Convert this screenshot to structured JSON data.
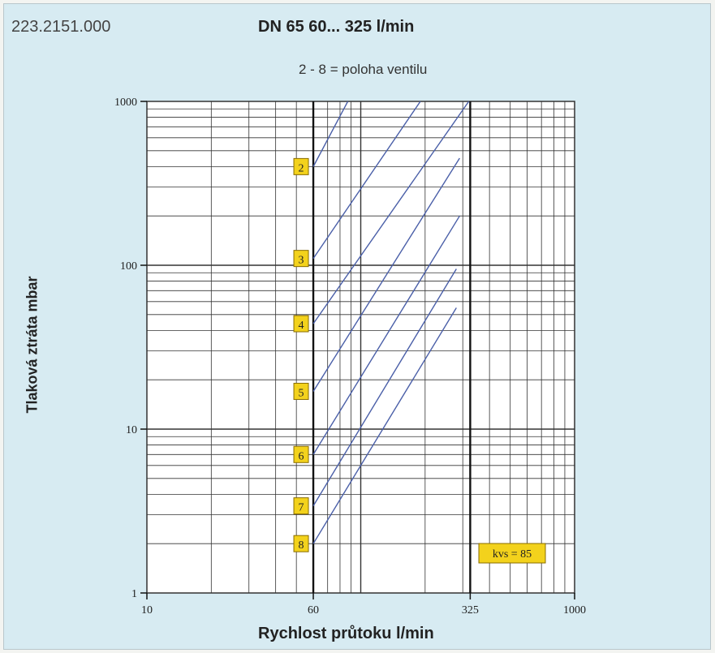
{
  "header": {
    "code": "223.2151.000",
    "title": "DN 65   60... 325 l/min",
    "subtitle": "2 - 8 = poloha ventilu"
  },
  "chart_data": {
    "type": "line",
    "xscale": "log",
    "yscale": "log",
    "xlim": [
      10,
      1000
    ],
    "ylim": [
      1,
      1000
    ],
    "xlabel": "Rychlost průtoku l/min",
    "ylabel": "Tlaková ztráta  mbar",
    "xticks": [
      10,
      60,
      325,
      1000
    ],
    "xtick_labels": [
      "10",
      "60",
      "325",
      "1000"
    ],
    "yticks": [
      1,
      10,
      100,
      1000
    ],
    "ytick_labels": [
      "1",
      "10",
      "100",
      "1000"
    ],
    "grid": true,
    "vertical_markers": [
      60,
      325
    ],
    "series": [
      {
        "name": "2",
        "x": [
          60,
          87
        ],
        "y": [
          400,
          1000
        ]
      },
      {
        "name": "3",
        "x": [
          60,
          190
        ],
        "y": [
          110,
          1000
        ]
      },
      {
        "name": "4",
        "x": [
          60,
          320
        ],
        "y": [
          44,
          1000
        ]
      },
      {
        "name": "5",
        "x": [
          60,
          290
        ],
        "y": [
          17,
          450
        ]
      },
      {
        "name": "6",
        "x": [
          60,
          290
        ],
        "y": [
          7,
          200
        ]
      },
      {
        "name": "7",
        "x": [
          60,
          280
        ],
        "y": [
          3.4,
          95
        ]
      },
      {
        "name": "8",
        "x": [
          60,
          280
        ],
        "y": [
          2,
          55
        ]
      }
    ],
    "annotation": "kvs = 85"
  },
  "colors": {
    "background": "#d7ebf2",
    "plot": "#ffffff",
    "grid": "#333333",
    "line": "#4a5fa8",
    "label_box": "#f3d21c"
  }
}
